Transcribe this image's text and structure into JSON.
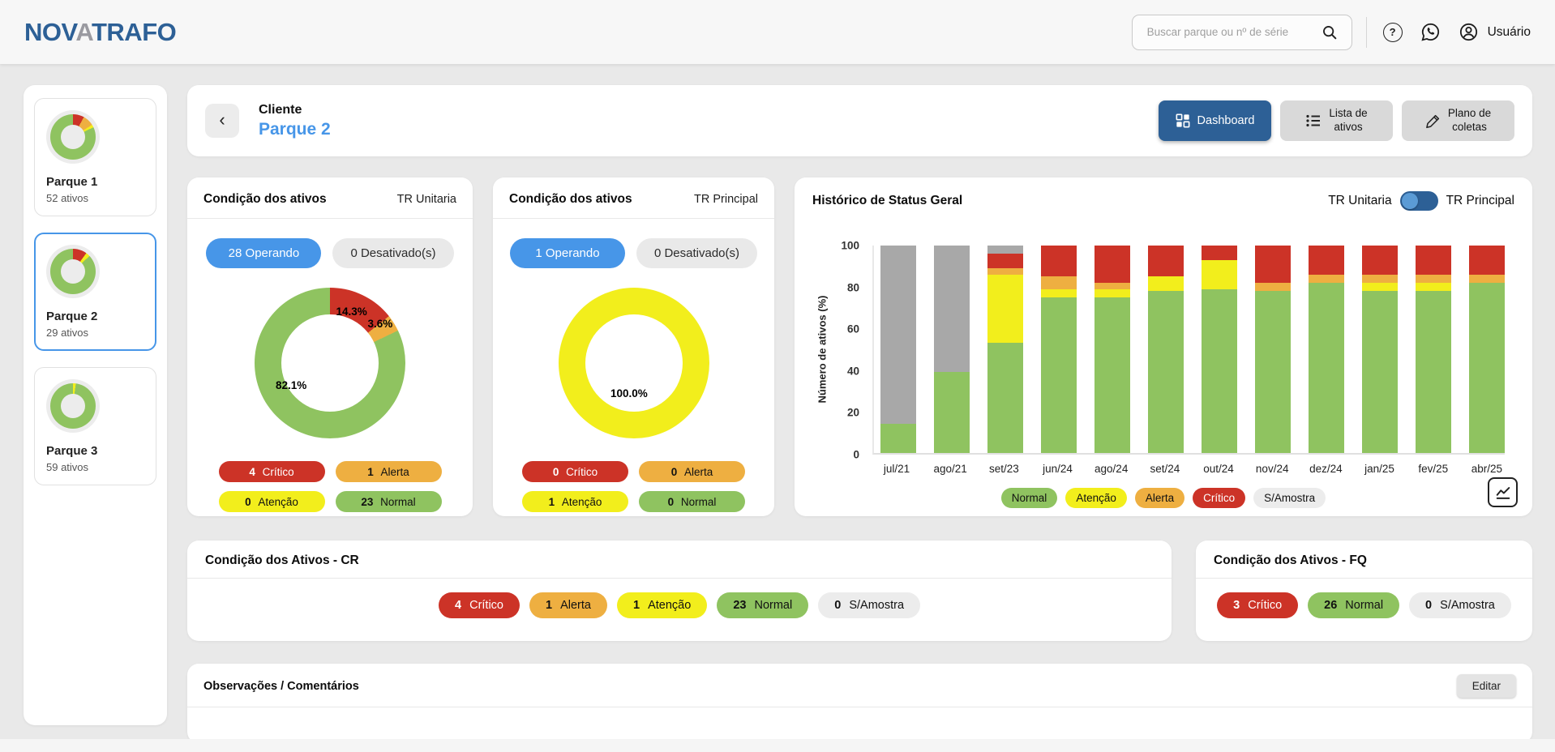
{
  "colors": {
    "normal": "#8fc360",
    "atencao": "#f2ee1c",
    "alerta": "#eeaf41",
    "critico": "#cc3327",
    "s_amostra": "#a8a8a8",
    "accent_blue": "#4796e8",
    "dark_blue": "#2d6096"
  },
  "topbar": {
    "logo": {
      "part1": "NOV",
      "part2": "A",
      "part3": "TRAFO"
    },
    "search_placeholder": "Buscar parque ou nº de série",
    "user_label": "Usuário"
  },
  "sidebar": {
    "parks": [
      {
        "name": "Parque 1",
        "subtitle": "52 ativos",
        "donut": [
          {
            "k": "critico",
            "v": 8
          },
          {
            "k": "alerta",
            "v": 8
          },
          {
            "k": "atencao",
            "v": 2
          },
          {
            "k": "normal",
            "v": 82
          }
        ]
      },
      {
        "name": "Parque 2",
        "subtitle": "29 ativos",
        "donut": [
          {
            "k": "critico",
            "v": 10
          },
          {
            "k": "atencao",
            "v": 3
          },
          {
            "k": "normal",
            "v": 87
          }
        ]
      },
      {
        "name": "Parque 3",
        "subtitle": "59 ativos",
        "donut": [
          {
            "k": "atencao",
            "v": 2
          },
          {
            "k": "normal",
            "v": 98
          }
        ]
      }
    ]
  },
  "header": {
    "back_icon": "‹",
    "client_label": "Cliente",
    "park_name": "Parque 2",
    "buttons": {
      "dashboard": "Dashboard",
      "lista_line1": "Lista de",
      "lista_line2": "ativos",
      "plano_line1": "Plano de",
      "plano_line2": "coletas"
    }
  },
  "condition_cards": [
    {
      "title": "Condição dos ativos",
      "tag": "TR Unitaria",
      "chips": [
        {
          "label": "28 Operando",
          "style": "blue"
        },
        {
          "label": "0 Desativado(s)",
          "style": "gray"
        }
      ],
      "donut": {
        "segments": [
          {
            "k": "critico",
            "v": 14.3
          },
          {
            "k": "alerta",
            "v": 3.6
          },
          {
            "k": "normal",
            "v": 82.1
          }
        ],
        "labels": [
          {
            "text": "14.3%",
            "pos": "top-right"
          },
          {
            "text": "3.6%",
            "pos": "right"
          },
          {
            "text": "82.1%",
            "pos": "bottom-left"
          }
        ]
      },
      "badges": [
        {
          "count": "4",
          "label": "Crítico",
          "k": "critico"
        },
        {
          "count": "1",
          "label": "Alerta",
          "k": "alerta"
        },
        {
          "count": "0",
          "label": "Atenção",
          "k": "atencao"
        },
        {
          "count": "23",
          "label": "Normal",
          "k": "normal"
        }
      ]
    },
    {
      "title": "Condição dos ativos",
      "tag": "TR Principal",
      "chips": [
        {
          "label": "1 Operando",
          "style": "blue"
        },
        {
          "label": "0 Desativado(s)",
          "style": "gray"
        }
      ],
      "donut": {
        "segments": [
          {
            "k": "atencao",
            "v": 100
          }
        ],
        "labels": [
          {
            "text": "100.0%",
            "pos": "bottom-center"
          }
        ]
      },
      "badges": [
        {
          "count": "0",
          "label": "Crítico",
          "k": "critico"
        },
        {
          "count": "0",
          "label": "Alerta",
          "k": "alerta"
        },
        {
          "count": "1",
          "label": "Atenção",
          "k": "atencao"
        },
        {
          "count": "0",
          "label": "Normal",
          "k": "normal"
        }
      ]
    }
  ],
  "history": {
    "title": "Histórico de Status Geral",
    "toggle_left": "TR Unitaria",
    "toggle_right": "TR Principal",
    "legend": [
      {
        "label": "Normal",
        "k": "normal"
      },
      {
        "label": "Atenção",
        "k": "atencao"
      },
      {
        "label": "Alerta",
        "k": "alerta"
      },
      {
        "label": "Crítico",
        "k": "critico"
      },
      {
        "label": "S/Amostra",
        "k": "s_amostra"
      }
    ]
  },
  "chart_data": {
    "type": "bar",
    "stacked": true,
    "title": "Histórico de Status Geral",
    "xlabel": "",
    "ylabel": "Número de ativos (%)",
    "ylim": [
      0,
      100
    ],
    "yticks": [
      0,
      20,
      40,
      60,
      80,
      100
    ],
    "grid": false,
    "legend_position": "bottom",
    "categories": [
      "jul/21",
      "ago/21",
      "set/23",
      "jun/24",
      "ago/24",
      "set/24",
      "out/24",
      "nov/24",
      "dez/24",
      "jan/25",
      "fev/25",
      "abr/25"
    ],
    "series": [
      {
        "name": "Normal",
        "key": "normal",
        "values": [
          14,
          39,
          53,
          75,
          75,
          78,
          79,
          78,
          82,
          78,
          78,
          82
        ]
      },
      {
        "name": "Atenção",
        "key": "atencao",
        "values": [
          0,
          0,
          33,
          4,
          4,
          7,
          14,
          0,
          0,
          4,
          4,
          0
        ]
      },
      {
        "name": "Alerta",
        "key": "alerta",
        "values": [
          0,
          0,
          3,
          6,
          3,
          0,
          0,
          4,
          4,
          4,
          4,
          4
        ]
      },
      {
        "name": "Crítico",
        "key": "critico",
        "values": [
          0,
          0,
          7,
          15,
          18,
          15,
          7,
          18,
          14,
          14,
          14,
          14
        ]
      },
      {
        "name": "S/Amostra",
        "key": "s_amostra",
        "values": [
          86,
          61,
          4,
          0,
          0,
          0,
          0,
          0,
          0,
          0,
          0,
          0
        ]
      }
    ]
  },
  "cr_card": {
    "title": "Condição dos Ativos - CR",
    "badges": [
      {
        "count": "4",
        "label": "Crítico",
        "k": "critico"
      },
      {
        "count": "1",
        "label": "Alerta",
        "k": "alerta"
      },
      {
        "count": "1",
        "label": "Atenção",
        "k": "atencao"
      },
      {
        "count": "23",
        "label": "Normal",
        "k": "normal"
      },
      {
        "count": "0",
        "label": "S/Amostra",
        "k": "s_amostra"
      }
    ]
  },
  "fq_card": {
    "title": "Condição dos Ativos - FQ",
    "badges": [
      {
        "count": "3",
        "label": "Crítico",
        "k": "critico"
      },
      {
        "count": "26",
        "label": "Normal",
        "k": "normal"
      },
      {
        "count": "0",
        "label": "S/Amostra",
        "k": "s_amostra"
      }
    ]
  },
  "observations": {
    "title": "Observações / Comentários",
    "edit_label": "Editar"
  }
}
